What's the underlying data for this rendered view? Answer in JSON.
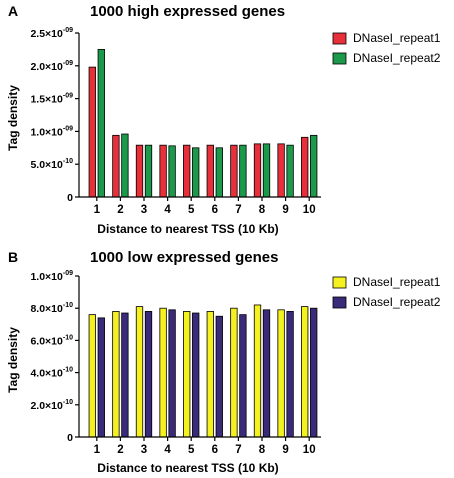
{
  "chart_data": [
    {
      "panel": "A",
      "type": "bar",
      "title": "1000 high expressed genes",
      "xlabel": "Distance to nearest TSS (10 Kb)",
      "ylabel": "Tag density",
      "categories": [
        "1",
        "2",
        "3",
        "4",
        "5",
        "6",
        "7",
        "8",
        "9",
        "10"
      ],
      "ylim": [
        0,
        2.5e-09
      ],
      "yticks": [
        {
          "value": 0,
          "mant": "0",
          "exp": ""
        },
        {
          "value": 5e-10,
          "mant": "5.0×10",
          "exp": "-10"
        },
        {
          "value": 1e-09,
          "mant": "1.0×10",
          "exp": "-09"
        },
        {
          "value": 1.5e-09,
          "mant": "1.5×10",
          "exp": "-09"
        },
        {
          "value": 2e-09,
          "mant": "2.0×10",
          "exp": "-09"
        },
        {
          "value": 2.5e-09,
          "mant": "2.5×10",
          "exp": "-09"
        }
      ],
      "series": [
        {
          "name": "DNaseI_repeat1",
          "color": "#e8303a",
          "values": [
            1.98e-09,
            9.4e-10,
            7.9e-10,
            7.9e-10,
            7.9e-10,
            7.9e-10,
            7.9e-10,
            8.1e-10,
            8.1e-10,
            9.1e-10
          ]
        },
        {
          "name": "DNaseI_repeat2",
          "color": "#1a9a4a",
          "values": [
            2.25e-09,
            9.6e-10,
            7.9e-10,
            7.8e-10,
            7.5e-10,
            7.5e-10,
            7.9e-10,
            8.1e-10,
            7.9e-10,
            9.4e-10
          ]
        }
      ],
      "legend": "top-right"
    },
    {
      "panel": "B",
      "type": "bar",
      "title": "1000 low expressed genes",
      "xlabel": "Distance to nearest TSS (10 Kb)",
      "ylabel": "Tag density",
      "categories": [
        "1",
        "2",
        "3",
        "4",
        "5",
        "6",
        "7",
        "8",
        "9",
        "10"
      ],
      "ylim": [
        0,
        1e-09
      ],
      "yticks": [
        {
          "value": 0,
          "mant": "0",
          "exp": ""
        },
        {
          "value": 2e-10,
          "mant": "2.0×10",
          "exp": "-10"
        },
        {
          "value": 4e-10,
          "mant": "4.0×10",
          "exp": "-10"
        },
        {
          "value": 6e-10,
          "mant": "6.0×10",
          "exp": "-10"
        },
        {
          "value": 8e-10,
          "mant": "8.0×10",
          "exp": "-10"
        },
        {
          "value": 1e-09,
          "mant": "1.0×10",
          "exp": "-09"
        }
      ],
      "series": [
        {
          "name": "DNaseI_repeat1",
          "color": "#f5f020",
          "values": [
            7.6e-10,
            7.8e-10,
            8.1e-10,
            8e-10,
            7.8e-10,
            7.8e-10,
            8e-10,
            8.2e-10,
            7.9e-10,
            8.1e-10
          ]
        },
        {
          "name": "DNaseI_repeat2",
          "color": "#3a2a7a",
          "values": [
            7.4e-10,
            7.7e-10,
            7.8e-10,
            7.9e-10,
            7.7e-10,
            7.5e-10,
            7.6e-10,
            7.9e-10,
            7.8e-10,
            8e-10
          ]
        }
      ],
      "legend": "top-right"
    }
  ]
}
